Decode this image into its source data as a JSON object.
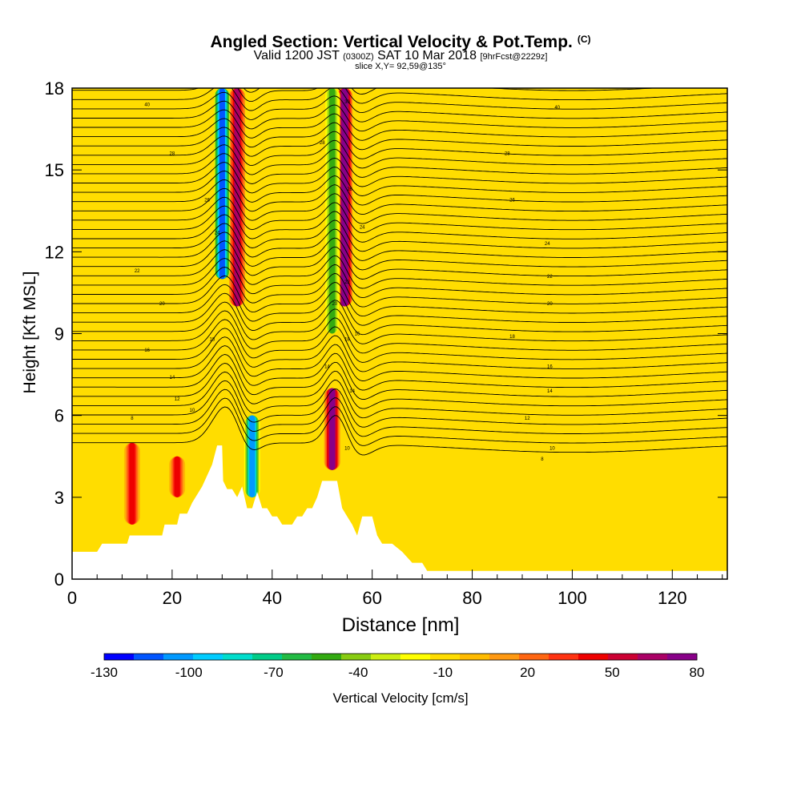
{
  "title": {
    "main": "Angled Section: Vertical Velocity & Pot.Temp.",
    "main_tag": "(C)",
    "valid_prefix": "Valid 1200 JST",
    "valid_utc": "(0300Z)",
    "valid_date": "SAT 10 Mar 2018",
    "forecast": "[9hrFcst@2229z]",
    "slice": "slice X,Y= 92,59@135°"
  },
  "colorbar": {
    "label": "Vertical Velocity [cm/s]",
    "tick_labels": [
      "-130",
      "-100",
      "-70",
      "-40",
      "-10",
      "20",
      "50",
      "80"
    ],
    "colors": [
      "#0000ff",
      "#0055ff",
      "#0099ff",
      "#00ccff",
      "#00ddcc",
      "#00cc88",
      "#22bb44",
      "#33aa11",
      "#88cc11",
      "#ccee11",
      "#ffff00",
      "#ffdd00",
      "#ffbb00",
      "#ff9911",
      "#ff6611",
      "#ff3311",
      "#ee0000",
      "#cc0033",
      "#aa0066",
      "#880088"
    ]
  },
  "chart_data": {
    "type": "heatmap",
    "xlabel": "Distance [nm]",
    "ylabel": "Height [Kft MSL]",
    "xlim": [
      0,
      131
    ],
    "ylim": [
      0,
      18
    ],
    "x_ticks": [
      0,
      20,
      40,
      60,
      80,
      100,
      120
    ],
    "y_ticks": [
      0,
      3,
      6,
      9,
      12,
      15,
      18
    ],
    "grid": false,
    "field": "vertical velocity (cm/s)",
    "vmin": -130,
    "vmax": 80,
    "background_value": -5,
    "features": [
      {
        "kind": "updraft",
        "x": 33,
        "y_from": 10,
        "y_to": 18,
        "value": 60
      },
      {
        "kind": "updraft",
        "x": 54.5,
        "y_from": 10,
        "y_to": 18,
        "value": 80
      },
      {
        "kind": "updraft",
        "x": 52,
        "y_from": 4,
        "y_to": 7,
        "value": 70
      },
      {
        "kind": "updraft",
        "x": 12,
        "y_from": 2,
        "y_to": 5,
        "value": 45
      },
      {
        "kind": "updraft",
        "x": 21,
        "y_from": 3,
        "y_to": 4.5,
        "value": 40
      },
      {
        "kind": "downdraft",
        "x": 30,
        "y_from": 11,
        "y_to": 18,
        "value": -110
      },
      {
        "kind": "downdraft",
        "x": 36,
        "y_from": 3,
        "y_to": 6,
        "value": -100
      },
      {
        "kind": "downdraft",
        "x": 52,
        "y_from": 9,
        "y_to": 18,
        "value": -50
      }
    ],
    "terrain_kft": [
      [
        0,
        1.0
      ],
      [
        5,
        1.0
      ],
      [
        6,
        1.3
      ],
      [
        11,
        1.3
      ],
      [
        11.5,
        1.6
      ],
      [
        18,
        1.6
      ],
      [
        18.5,
        2.0
      ],
      [
        21,
        2.0
      ],
      [
        21.5,
        2.4
      ],
      [
        23,
        2.4
      ],
      [
        24,
        2.8
      ],
      [
        26,
        3.4
      ],
      [
        28,
        4.2
      ],
      [
        29,
        4.9
      ],
      [
        30,
        4.9
      ],
      [
        30.2,
        3.6
      ],
      [
        31,
        3.3
      ],
      [
        32,
        3.3
      ],
      [
        33,
        3.0
      ],
      [
        34,
        3.4
      ],
      [
        35,
        2.6
      ],
      [
        36,
        2.6
      ],
      [
        37,
        3.2
      ],
      [
        38,
        2.6
      ],
      [
        39,
        2.6
      ],
      [
        40,
        2.3
      ],
      [
        41,
        2.3
      ],
      [
        42,
        2.0
      ],
      [
        44,
        2.0
      ],
      [
        45,
        2.3
      ],
      [
        46,
        2.3
      ],
      [
        47,
        2.6
      ],
      [
        48,
        2.6
      ],
      [
        49,
        3.0
      ],
      [
        50,
        3.6
      ],
      [
        53,
        3.6
      ],
      [
        54,
        2.6
      ],
      [
        55,
        2.3
      ],
      [
        56,
        2.0
      ],
      [
        57,
        1.6
      ],
      [
        58,
        2.3
      ],
      [
        60,
        2.3
      ],
      [
        61,
        1.6
      ],
      [
        62,
        1.3
      ],
      [
        64,
        1.3
      ],
      [
        66,
        1.0
      ],
      [
        68,
        0.6
      ],
      [
        70,
        0.6
      ],
      [
        71,
        0.3
      ],
      [
        131,
        0.3
      ]
    ],
    "contour_labels": [
      {
        "x": 15,
        "y": 17.4,
        "text": "40"
      },
      {
        "x": 20,
        "y": 15.6,
        "text": "28"
      },
      {
        "x": 27,
        "y": 13.9,
        "text": "26"
      },
      {
        "x": 29,
        "y": 12.7,
        "text": "24"
      },
      {
        "x": 13,
        "y": 11.3,
        "text": "22"
      },
      {
        "x": 18,
        "y": 10.1,
        "text": "20"
      },
      {
        "x": 28,
        "y": 8.8,
        "text": "18"
      },
      {
        "x": 15,
        "y": 8.4,
        "text": "16"
      },
      {
        "x": 20,
        "y": 7.4,
        "text": "14"
      },
      {
        "x": 21,
        "y": 6.6,
        "text": "12"
      },
      {
        "x": 24,
        "y": 6.2,
        "text": "10"
      },
      {
        "x": 12,
        "y": 5.9,
        "text": "8"
      },
      {
        "x": 50,
        "y": 16.0,
        "text": "28"
      },
      {
        "x": 52.5,
        "y": 10.1,
        "text": "20"
      },
      {
        "x": 55,
        "y": 10.9,
        "text": "22"
      },
      {
        "x": 58,
        "y": 12.9,
        "text": "24"
      },
      {
        "x": 55.5,
        "y": 14.3,
        "text": "26"
      },
      {
        "x": 55,
        "y": 17.5,
        "text": "30"
      },
      {
        "x": 55,
        "y": 8.8,
        "text": "18"
      },
      {
        "x": 57,
        "y": 9.0,
        "text": "16"
      },
      {
        "x": 51,
        "y": 7.8,
        "text": "14"
      },
      {
        "x": 56,
        "y": 6.9,
        "text": "14"
      },
      {
        "x": 55,
        "y": 4.8,
        "text": "10"
      },
      {
        "x": 97,
        "y": 17.3,
        "text": "40"
      },
      {
        "x": 87,
        "y": 15.6,
        "text": "28"
      },
      {
        "x": 88,
        "y": 13.9,
        "text": "26"
      },
      {
        "x": 95,
        "y": 12.3,
        "text": "24"
      },
      {
        "x": 95.5,
        "y": 11.1,
        "text": "22"
      },
      {
        "x": 95.5,
        "y": 10.1,
        "text": "20"
      },
      {
        "x": 88,
        "y": 8.9,
        "text": "18"
      },
      {
        "x": 95.5,
        "y": 7.8,
        "text": "16"
      },
      {
        "x": 95.5,
        "y": 6.9,
        "text": "14"
      },
      {
        "x": 91,
        "y": 5.9,
        "text": "12"
      },
      {
        "x": 96,
        "y": 4.8,
        "text": "10"
      },
      {
        "x": 94,
        "y": 4.4,
        "text": "8"
      }
    ]
  }
}
